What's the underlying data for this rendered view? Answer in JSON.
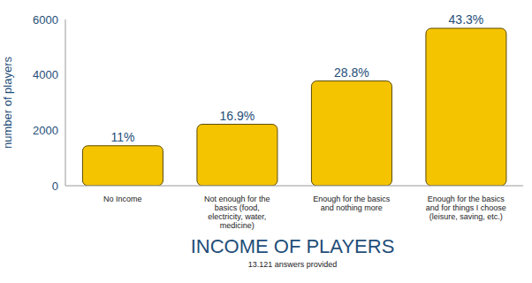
{
  "chart_data": {
    "type": "bar",
    "title": "INCOME OF PLAYERS",
    "subtitle": "13.121 answers provided",
    "ylabel": "number of players",
    "categories": [
      "No Income",
      "Not enough for the basics (food, electricity, water, medicine)",
      "Enough for the basics and nothing more",
      "Enough for the basics and for things I choose (leisure, saving, etc.)"
    ],
    "values": [
      1443,
      2217,
      3779,
      5681
    ],
    "value_labels": [
      "11%",
      "16.9%",
      "28.8%",
      "43.3%"
    ],
    "color": "#f5c400",
    "ylim": [
      0,
      6000
    ],
    "yticks": [
      0,
      2000,
      4000,
      6000
    ],
    "grid": false,
    "data_labels": true
  }
}
